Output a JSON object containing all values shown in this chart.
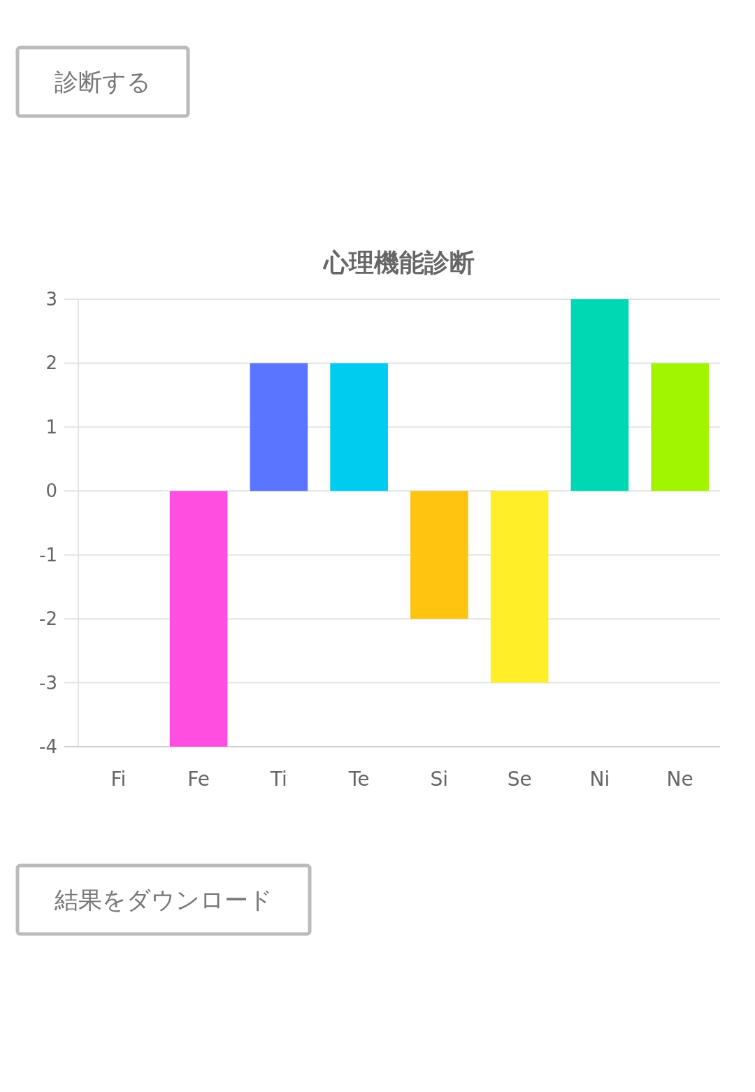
{
  "chart_data": {
    "type": "bar",
    "title": "心理機能診断",
    "categories": [
      "Fi",
      "Fe",
      "Ti",
      "Te",
      "Si",
      "Se",
      "Ni",
      "Ne"
    ],
    "values": [
      0,
      -4,
      2,
      2,
      -2,
      -3,
      3,
      2
    ],
    "colors": [
      "#ff6384",
      "#ff4fe0",
      "#5a75ff",
      "#00ccf0",
      "#ffc410",
      "#ffee28",
      "#00d8b4",
      "#a2f500"
    ],
    "ylim": [
      -4,
      3
    ],
    "yticks": [
      -4,
      -3,
      -2,
      -1,
      0,
      1,
      2,
      3
    ],
    "grid": true,
    "annotations": [
      "診断する",
      "結果をダウンロード"
    ]
  }
}
